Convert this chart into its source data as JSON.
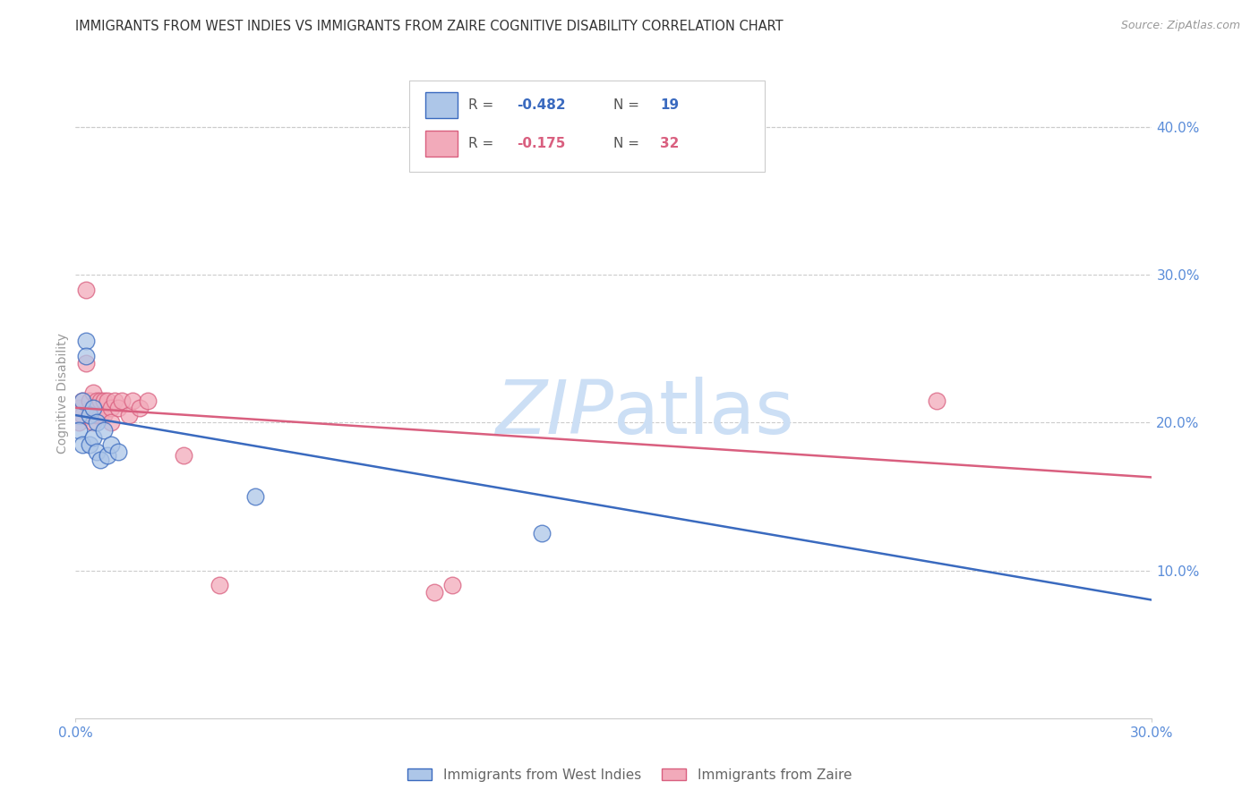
{
  "title": "IMMIGRANTS FROM WEST INDIES VS IMMIGRANTS FROM ZAIRE COGNITIVE DISABILITY CORRELATION CHART",
  "source": "Source: ZipAtlas.com",
  "ylabel": "Cognitive Disability",
  "right_yticks": [
    "40.0%",
    "30.0%",
    "20.0%",
    "10.0%"
  ],
  "right_ytick_vals": [
    0.4,
    0.3,
    0.2,
    0.1
  ],
  "xlim": [
    0.0,
    0.3
  ],
  "ylim": [
    0.0,
    0.44
  ],
  "blue_color": "#adc6e8",
  "pink_color": "#f2aaba",
  "blue_line_color": "#3a6abf",
  "pink_line_color": "#d95f7f",
  "axis_color": "#5b8dd9",
  "grid_color": "#cccccc",
  "watermark_color": "#ccdff5",
  "west_indies_x": [
    0.001,
    0.001,
    0.002,
    0.002,
    0.003,
    0.003,
    0.004,
    0.004,
    0.005,
    0.005,
    0.006,
    0.006,
    0.007,
    0.008,
    0.009,
    0.01,
    0.012,
    0.05,
    0.13
  ],
  "west_indies_y": [
    0.205,
    0.195,
    0.215,
    0.185,
    0.255,
    0.245,
    0.205,
    0.185,
    0.21,
    0.19,
    0.2,
    0.18,
    0.175,
    0.195,
    0.178,
    0.185,
    0.18,
    0.15,
    0.125
  ],
  "zaire_x": [
    0.001,
    0.001,
    0.002,
    0.002,
    0.003,
    0.003,
    0.004,
    0.004,
    0.005,
    0.005,
    0.005,
    0.006,
    0.006,
    0.007,
    0.007,
    0.008,
    0.008,
    0.009,
    0.01,
    0.01,
    0.011,
    0.012,
    0.013,
    0.015,
    0.016,
    0.018,
    0.02,
    0.03,
    0.04,
    0.1,
    0.105,
    0.24
  ],
  "zaire_y": [
    0.21,
    0.2,
    0.215,
    0.205,
    0.29,
    0.24,
    0.215,
    0.205,
    0.22,
    0.21,
    0.2,
    0.215,
    0.205,
    0.215,
    0.205,
    0.215,
    0.205,
    0.215,
    0.21,
    0.2,
    0.215,
    0.21,
    0.215,
    0.205,
    0.215,
    0.21,
    0.215,
    0.178,
    0.09,
    0.085,
    0.09,
    0.215
  ],
  "blue_line_x": [
    0.0,
    0.3
  ],
  "blue_line_y": [
    0.205,
    0.08
  ],
  "pink_line_x": [
    0.0,
    0.3
  ],
  "pink_line_y": [
    0.21,
    0.163
  ],
  "legend_entries": [
    {
      "label": "R =",
      "val": "-0.482",
      "n_label": "N =",
      "n_val": "19"
    },
    {
      "label": "R =",
      "val": "-0.175",
      "n_label": "N =",
      "n_val": "32"
    }
  ],
  "bottom_legend": [
    {
      "text": "Immigrants from West Indies"
    },
    {
      "text": "Immigrants from Zaire"
    }
  ]
}
